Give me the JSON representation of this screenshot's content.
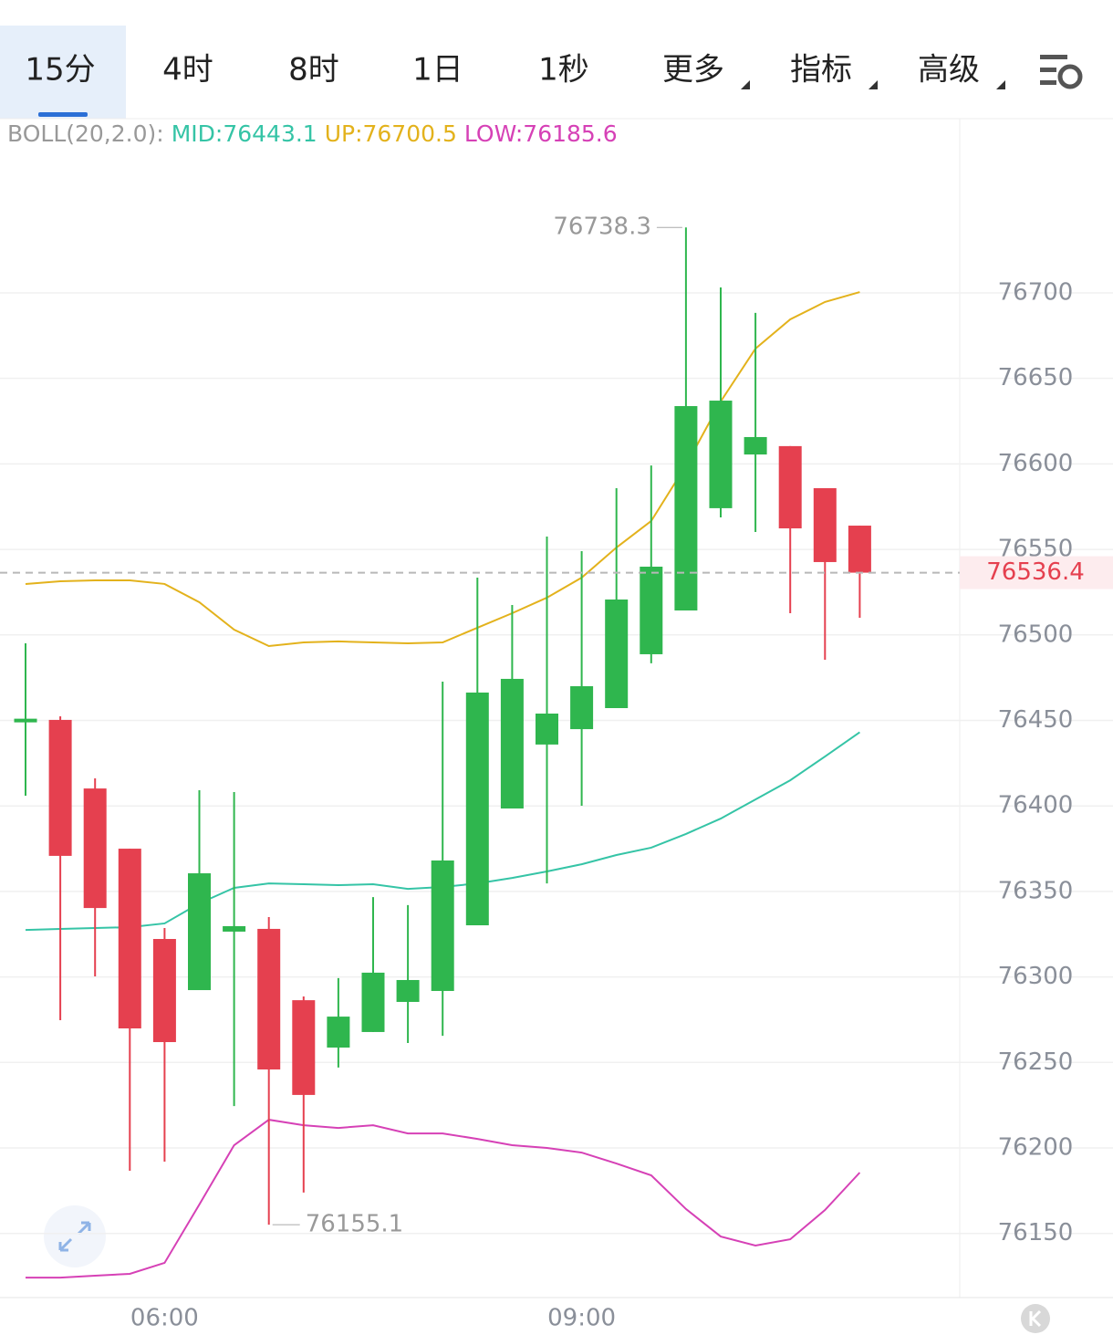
{
  "tabs": [
    "15分",
    "4时",
    "8时",
    "1日",
    "1秒",
    "更多",
    "指标",
    "高级"
  ],
  "chart_data": {
    "type": "candlestick",
    "legend_title": "BOLL(20,2.0):",
    "categories": [
      null,
      null,
      null,
      null,
      "06:00",
      null,
      null,
      null,
      null,
      null,
      null,
      null,
      null,
      null,
      null,
      null,
      "09:00",
      null,
      null,
      null,
      null,
      null,
      null,
      null,
      null
    ],
    "open": [
      76450,
      76450.3,
      76410.2,
      76375,
      76322.2,
      76292.3,
      76326.5,
      76328.1,
      76286.4,
      76258.7,
      76267.8,
      76285.4,
      76291.8,
      76330.2,
      76398.5,
      76435.9,
      76444.9,
      76457.2,
      76488.7,
      76514.3,
      76574.1,
      76605.5,
      76610.4,
      76585.8,
      76563.9
    ],
    "high": [
      76495.1,
      76452.4,
      76416.1,
      76375,
      76328.6,
      76409.2,
      76408.1,
      76335,
      76288.6,
      76299.3,
      76346.7,
      76342,
      76472.7,
      76533.5,
      76517.5,
      76557.5,
      76549,
      76585.8,
      76599.1,
      76738.3,
      76703.2,
      76688.3,
      76610.4,
      76585.8,
      76563.9
    ],
    "low": [
      76406,
      76274.7,
      76300.3,
      76186.7,
      76192,
      76292.3,
      76224.5,
      76155.1,
      76173.9,
      76247,
      76267.8,
      76261.4,
      76265.6,
      76330.2,
      76398.5,
      76354.7,
      76400.1,
      76457.2,
      76483.4,
      76514.3,
      76568.7,
      76560.2,
      76512.7,
      76485.5,
      76510
    ],
    "close": [
      76451,
      76370.8,
      76340.3,
      76269.9,
      76261.9,
      76360.6,
      76329.7,
      76245.9,
      76231,
      76276.8,
      76302.5,
      76298.2,
      76368.1,
      76466.3,
      76474.3,
      76454,
      76470,
      76520.7,
      76539.9,
      76633.8,
      76637,
      76615.7,
      76562.3,
      76542.6,
      76536.4
    ],
    "up_color": "#2fb64e",
    "down_color": "#e5404f",
    "series": [
      {
        "name": "MID:76443.1",
        "color": "#35c4a6",
        "values": [
          76327.5,
          76328.1,
          76328.6,
          76329.1,
          76331.3,
          76343,
          76352.1,
          76354.7,
          76354.2,
          76353.7,
          76354.2,
          76351.5,
          76352.6,
          76354.7,
          76357.9,
          76361.7,
          76365.9,
          76371.3,
          76375.6,
          76383.6,
          76392.6,
          76403.8,
          76415,
          76428.9,
          76443.1
        ]
      },
      {
        "name": "UP:76700.5",
        "color": "#e3b21c",
        "values": [
          76529.8,
          76531.4,
          76531.9,
          76531.9,
          76529.8,
          76519.1,
          76503.1,
          76493.5,
          76495.6,
          76496.2,
          76495.6,
          76495.1,
          76495.6,
          76504.2,
          76512.7,
          76521.8,
          76533.5,
          76551.1,
          76566.6,
          76599.1,
          76636.5,
          76667.4,
          76684.5,
          76694.7,
          76700.5
        ]
      },
      {
        "name": "LOW:76185.6",
        "color": "#d641b6",
        "values": [
          76124.2,
          76124.2,
          76125.3,
          76126.4,
          76132.8,
          76166.9,
          76201.6,
          76216.5,
          76213.3,
          76211.7,
          76213.3,
          76208.5,
          76208.5,
          76205.3,
          76201.6,
          76200,
          76197.3,
          76190.9,
          76184,
          76164.3,
          76148.2,
          76142.9,
          76146.6,
          76163.7,
          76185.6
        ]
      }
    ],
    "ylim": [
      76112.5,
      76801.9
    ],
    "yticks": [
      76150,
      76200,
      76250,
      76300,
      76350,
      76400,
      76450,
      76500,
      76550,
      76600,
      76650,
      76700
    ],
    "grid": true,
    "last_price": 76536.4,
    "high_label": 76738.3,
    "low_label": 76155.1
  }
}
